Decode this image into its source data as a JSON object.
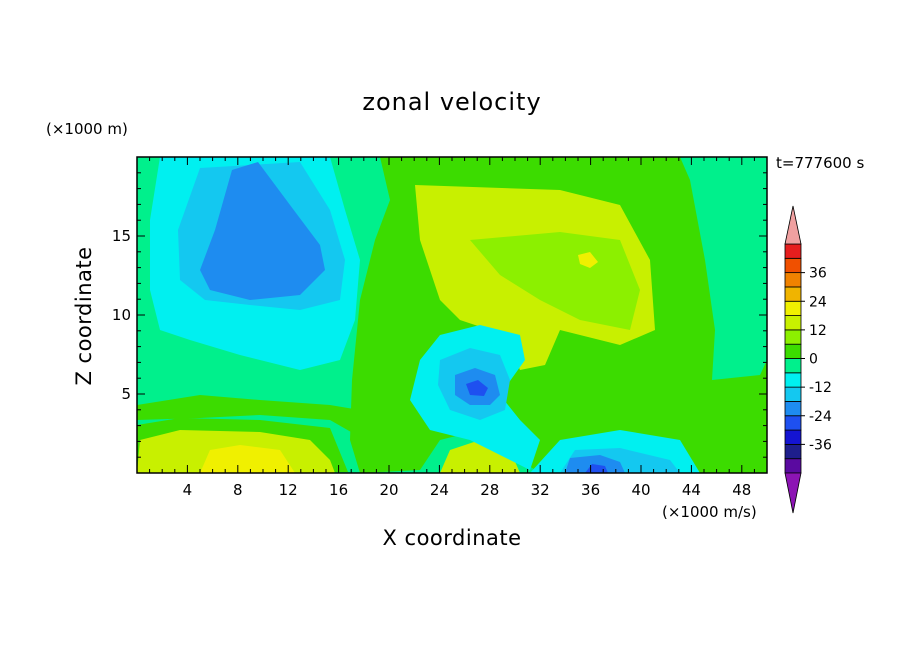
{
  "chart_data": {
    "type": "heatmap",
    "title": "zonal velocity",
    "xlabel": "X coordinate",
    "ylabel": "Z coordinate",
    "x_unit": "(×1000 m/s)",
    "y_unit": "(×1000 m)",
    "time_label": "t=777600 s",
    "xlim": [
      0,
      50
    ],
    "ylim": [
      0,
      20
    ],
    "x_ticks": [
      4,
      8,
      12,
      16,
      20,
      24,
      28,
      32,
      36,
      40,
      44,
      48
    ],
    "y_ticks": [
      5,
      10,
      15
    ],
    "colorbar": {
      "levels": [
        -42,
        -36,
        -30,
        -24,
        -18,
        -12,
        -6,
        0,
        6,
        12,
        18,
        24,
        30,
        36,
        42
      ],
      "tick_labels": [
        "-36",
        "-24",
        "-12",
        "0",
        "12",
        "24",
        "36"
      ],
      "colors": [
        "#5a0aa0",
        "#1e1e8c",
        "#1414d2",
        "#1e50f0",
        "#1e8cf0",
        "#14c8f0",
        "#00f0f0",
        "#00f08c",
        "#3cdc00",
        "#8cf000",
        "#c8f000",
        "#f0f000",
        "#f0b400",
        "#f08200",
        "#f05000",
        "#e61e1e"
      ],
      "under_color": "#8c14b4",
      "over_color": "#f0a0a0"
    },
    "field_regions": [
      {
        "label": "upper-left negative core",
        "x": 9,
        "z": 14,
        "value": -18
      },
      {
        "label": "mid negative core",
        "x": 27,
        "z": 5,
        "value": -24
      },
      {
        "label": "bottom negative core",
        "x": 35,
        "z": 0.5,
        "value": -24
      },
      {
        "label": "upper-right positive core",
        "x": 36,
        "z": 13.5,
        "value": 15
      },
      {
        "label": "bottom-left positive core",
        "x": 10,
        "z": 1,
        "value": 15
      }
    ]
  }
}
